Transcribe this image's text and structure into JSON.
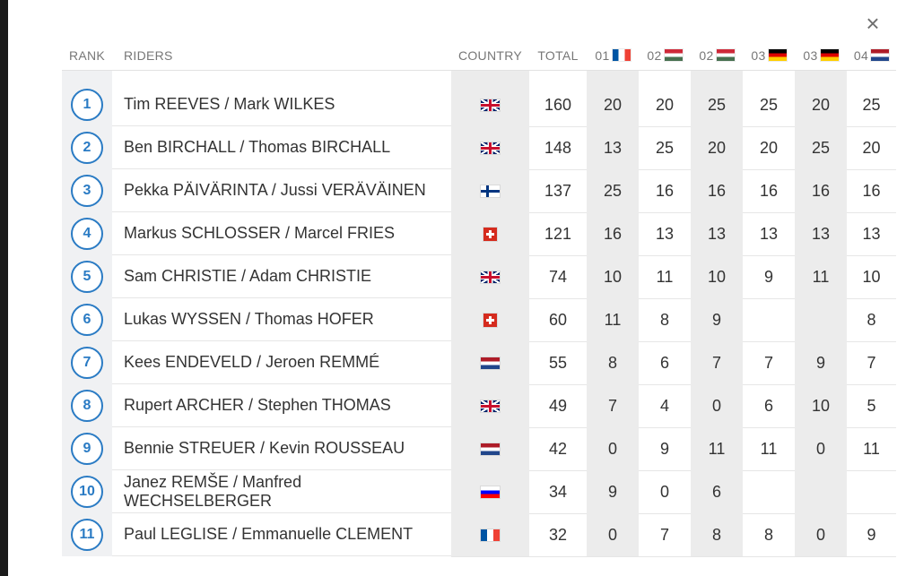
{
  "close_label": "×",
  "headers": {
    "rank": "RANK",
    "riders": "RIDERS",
    "country": "COUNTRY",
    "total": "TOTAL",
    "rounds": [
      {
        "label": "01",
        "flag": "fr"
      },
      {
        "label": "02",
        "flag": "hu"
      },
      {
        "label": "02",
        "flag": "hu"
      },
      {
        "label": "03",
        "flag": "de"
      },
      {
        "label": "03",
        "flag": "de"
      },
      {
        "label": "04",
        "flag": "nl"
      }
    ]
  },
  "colors": {
    "accent": "#2a7bc4"
  },
  "rows": [
    {
      "rank": "1",
      "riders": "Tim REEVES / Mark WILKES",
      "country": "gb",
      "total": "160",
      "r": [
        "20",
        "20",
        "25",
        "25",
        "20",
        "25"
      ]
    },
    {
      "rank": "2",
      "riders": "Ben BIRCHALL / Thomas BIRCHALL",
      "country": "gb",
      "total": "148",
      "r": [
        "13",
        "25",
        "20",
        "20",
        "25",
        "20"
      ]
    },
    {
      "rank": "3",
      "riders": "Pekka PÄIVÄRINTA / Jussi VERÄVÄINEN",
      "country": "fi",
      "total": "137",
      "r": [
        "25",
        "16",
        "16",
        "16",
        "16",
        "16"
      ]
    },
    {
      "rank": "4",
      "riders": "Markus SCHLOSSER / Marcel FRIES",
      "country": "ch",
      "total": "121",
      "r": [
        "16",
        "13",
        "13",
        "13",
        "13",
        "13"
      ]
    },
    {
      "rank": "5",
      "riders": "Sam CHRISTIE / Adam CHRISTIE",
      "country": "gb",
      "total": "74",
      "r": [
        "10",
        "11",
        "10",
        "9",
        "11",
        "10"
      ]
    },
    {
      "rank": "6",
      "riders": "Lukas WYSSEN / Thomas HOFER",
      "country": "ch",
      "total": "60",
      "r": [
        "11",
        "8",
        "9",
        "",
        "",
        "8"
      ]
    },
    {
      "rank": "7",
      "riders": "Kees ENDEVELD / Jeroen REMMÉ",
      "country": "nl",
      "total": "55",
      "r": [
        "8",
        "6",
        "7",
        "7",
        "9",
        "7"
      ]
    },
    {
      "rank": "8",
      "riders": "Rupert ARCHER / Stephen THOMAS",
      "country": "gb",
      "total": "49",
      "r": [
        "7",
        "4",
        "0",
        "6",
        "10",
        "5"
      ]
    },
    {
      "rank": "9",
      "riders": "Bennie STREUER / Kevin ROUSSEAU",
      "country": "nl",
      "total": "42",
      "r": [
        "0",
        "9",
        "11",
        "11",
        "0",
        "11"
      ]
    },
    {
      "rank": "10",
      "riders": "Janez REMŠE / Manfred WECHSELBERGER",
      "country": "si",
      "total": "34",
      "r": [
        "9",
        "0",
        "6",
        "",
        "",
        ""
      ]
    },
    {
      "rank": "11",
      "riders": "Paul LEGLISE / Emmanuelle CLEMENT",
      "country": "fr",
      "total": "32",
      "r": [
        "0",
        "7",
        "8",
        "8",
        "0",
        "9"
      ]
    }
  ]
}
